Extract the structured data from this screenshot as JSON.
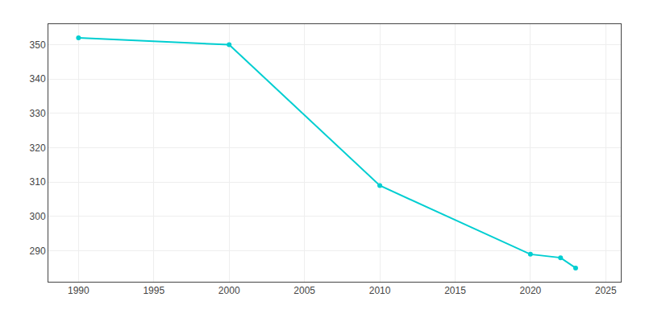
{
  "chart_data": {
    "type": "line",
    "x": [
      1990,
      2000,
      2010,
      2020,
      2022,
      2023
    ],
    "values": [
      352,
      350,
      309,
      289,
      288,
      285
    ],
    "color": "#00CED1",
    "marker": "circle",
    "line_style": "solid",
    "xlim": [
      1988,
      2026
    ],
    "ylim": [
      281,
      356
    ],
    "xticks": [
      1990,
      1995,
      2000,
      2005,
      2010,
      2015,
      2020,
      2025
    ],
    "yticks": [
      290,
      300,
      310,
      320,
      330,
      340,
      350
    ],
    "grid": true
  }
}
